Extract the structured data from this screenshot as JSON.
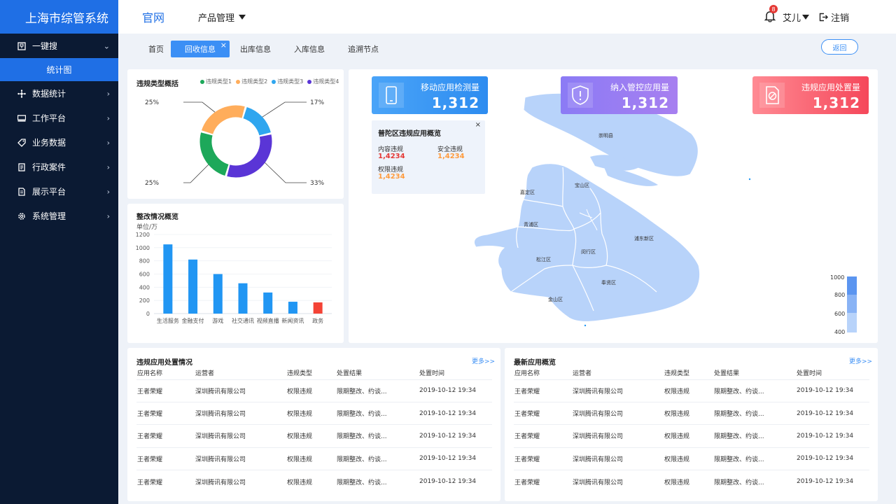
{
  "sidebar": {
    "brand": "上海市综管系统",
    "items": [
      {
        "label": "一键搜",
        "icon": "search-box-icon",
        "chevron": "⌄"
      },
      {
        "label": "数据统计",
        "icon": "nodes-icon",
        "chevron": "›"
      },
      {
        "label": "工作平台",
        "icon": "monitor-icon",
        "chevron": "›"
      },
      {
        "label": "业务数据",
        "icon": "tag-icon",
        "chevron": "›"
      },
      {
        "label": "行政案件",
        "icon": "document-icon",
        "chevron": "›"
      },
      {
        "label": "展示平台",
        "icon": "file-icon",
        "chevron": "›"
      },
      {
        "label": "系统管理",
        "icon": "gear-icon",
        "chevron": "›"
      }
    ],
    "subitem": "统计图"
  },
  "topbar": {
    "title": "官网",
    "menu": "产品管理",
    "badge_count": "8",
    "user": "艾儿",
    "logout": "注销"
  },
  "tabs": [
    {
      "label": "首页"
    },
    {
      "label": "回收信息",
      "close": "×"
    },
    {
      "label": "出库信息"
    },
    {
      "label": "入库信息"
    },
    {
      "label": "追溯节点"
    }
  ],
  "back_button": "返回",
  "donut": {
    "title": "违规类型概括",
    "legend": [
      "违规类型1",
      "违规类型2",
      "违规类型3",
      "违规类型4"
    ],
    "labels": [
      "25%",
      "17%",
      "25%",
      "33%"
    ]
  },
  "bar_card": {
    "title": "整改情况概览",
    "unit": "单位/万"
  },
  "chart_data": [
    {
      "type": "pie",
      "title": "违规类型概括",
      "categories": [
        "违规类型1",
        "违规类型2",
        "违规类型3",
        "违规类型4"
      ],
      "values": [
        25,
        25,
        17,
        33
      ],
      "colors": [
        "#1da85a",
        "#ffad5b",
        "#2fa6ef",
        "#5a35d6"
      ]
    },
    {
      "type": "bar",
      "title": "整改情况概览",
      "ylabel": "单位/万",
      "categories": [
        "生活服务",
        "金融支付",
        "游戏",
        "社交通讯",
        "视频直播",
        "新闻资讯",
        "政务"
      ],
      "values": [
        1050,
        820,
        600,
        460,
        320,
        180,
        170
      ],
      "ylim": [
        0,
        1200
      ],
      "yticks": [
        "0",
        "200",
        "400",
        "600",
        "800",
        "1000",
        "1200"
      ],
      "colors": [
        "#2196f3",
        "#2196f3",
        "#2196f3",
        "#2196f3",
        "#2196f3",
        "#2196f3",
        "#f44336"
      ]
    }
  ],
  "stats": [
    {
      "label": "移动应用检测量",
      "value": "1,312",
      "icon": "phone-icon"
    },
    {
      "label": "纳入管控应用量",
      "value": "1,312",
      "icon": "shield-icon"
    },
    {
      "label": "违规应用处置量",
      "value": "1,312",
      "icon": "ban-document-icon"
    }
  ],
  "popup": {
    "title": "普陀区违规应用概览",
    "close": "×",
    "content_label": "内容违规",
    "content_value": "1,4234",
    "security_label": "安全违规",
    "security_value": "1,4234",
    "perm_label": "权限违规",
    "perm_value": "1,4234"
  },
  "map": {
    "districts": [
      "崇明县",
      "宝山区",
      "嘉定区",
      "青浦区",
      "浦东新区",
      "闵行区",
      "松江区",
      "奉贤区",
      "金山区"
    ],
    "scale": [
      "1000",
      "800",
      "600",
      "400"
    ]
  },
  "tables": [
    {
      "title": "违规应用处置情况",
      "more": "更多>>",
      "headers": [
        "应用名称",
        "运营者",
        "违规类型",
        "处置结果",
        "处置时间"
      ],
      "rows": [
        [
          "王者荣耀",
          "深圳腾讯有限公司",
          "权限违规",
          "限期整改、约谈...",
          "2019-10-12 19:34"
        ],
        [
          "王者荣耀",
          "深圳腾讯有限公司",
          "权限违规",
          "限期整改、约谈...",
          "2019-10-12 19:34"
        ],
        [
          "王者荣耀",
          "深圳腾讯有限公司",
          "权限违规",
          "限期整改、约谈...",
          "2019-10-12 19:34"
        ],
        [
          "王者荣耀",
          "深圳腾讯有限公司",
          "权限违规",
          "限期整改、约谈...",
          "2019-10-12 19:34"
        ],
        [
          "王者荣耀",
          "深圳腾讯有限公司",
          "权限违规",
          "限期整改、约谈...",
          "2019-10-12 19:34"
        ]
      ]
    },
    {
      "title": "最新应用概览",
      "more": "更多>>",
      "headers": [
        "应用名称",
        "运营者",
        "违规类型",
        "处置结果",
        "处置时间"
      ],
      "rows": [
        [
          "王者荣耀",
          "深圳腾讯有限公司",
          "权限违规",
          "限期整改、约谈...",
          "2019-10-12 19:34"
        ],
        [
          "王者荣耀",
          "深圳腾讯有限公司",
          "权限违规",
          "限期整改、约谈...",
          "2019-10-12 19:34"
        ],
        [
          "王者荣耀",
          "深圳腾讯有限公司",
          "权限违规",
          "限期整改、约谈...",
          "2019-10-12 19:34"
        ],
        [
          "王者荣耀",
          "深圳腾讯有限公司",
          "权限违规",
          "限期整改、约谈...",
          "2019-10-12 19:34"
        ],
        [
          "王者荣耀",
          "深圳腾讯有限公司",
          "权限违规",
          "限期整改、约谈...",
          "2019-10-12 19:34"
        ]
      ]
    }
  ]
}
